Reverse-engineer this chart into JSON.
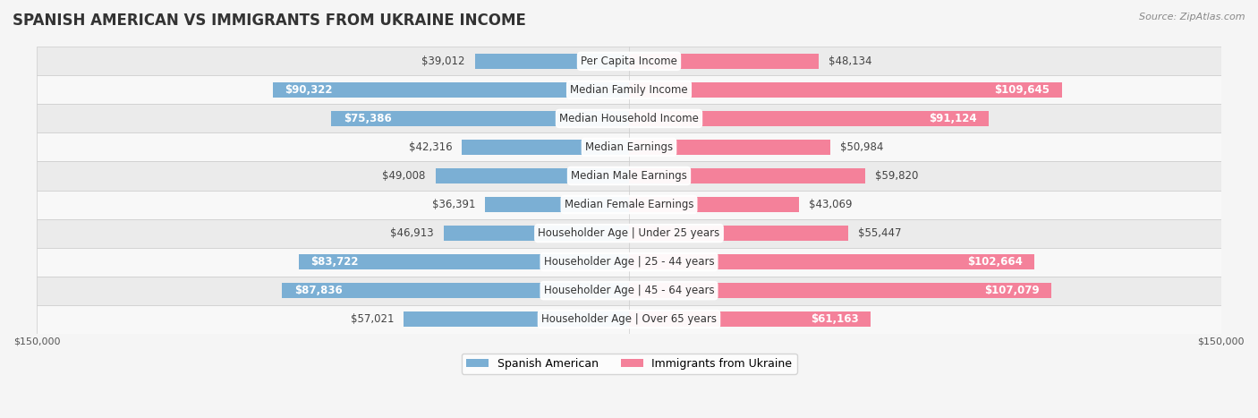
{
  "title": "SPANISH AMERICAN VS IMMIGRANTS FROM UKRAINE INCOME",
  "source": "Source: ZipAtlas.com",
  "categories": [
    "Per Capita Income",
    "Median Family Income",
    "Median Household Income",
    "Median Earnings",
    "Median Male Earnings",
    "Median Female Earnings",
    "Householder Age | Under 25 years",
    "Householder Age | 25 - 44 years",
    "Householder Age | 45 - 64 years",
    "Householder Age | Over 65 years"
  ],
  "spanish_american": [
    39012,
    90322,
    75386,
    42316,
    49008,
    36391,
    46913,
    83722,
    87836,
    57021
  ],
  "ukraine": [
    48134,
    109645,
    91124,
    50984,
    59820,
    43069,
    55447,
    102664,
    107079,
    61163
  ],
  "max_val": 150000,
  "color_spanish": "#7bafd4",
  "color_ukraine": "#f4819a",
  "bar_height": 0.55,
  "bg_color": "#f5f5f5",
  "row_bg_even": "#ebebeb",
  "row_bg_odd": "#f8f8f8",
  "title_fontsize": 12,
  "value_fontsize": 8.5,
  "category_fontsize": 8.5,
  "legend_fontsize": 9,
  "axis_label_fontsize": 8,
  "inside_threshold": 60000
}
